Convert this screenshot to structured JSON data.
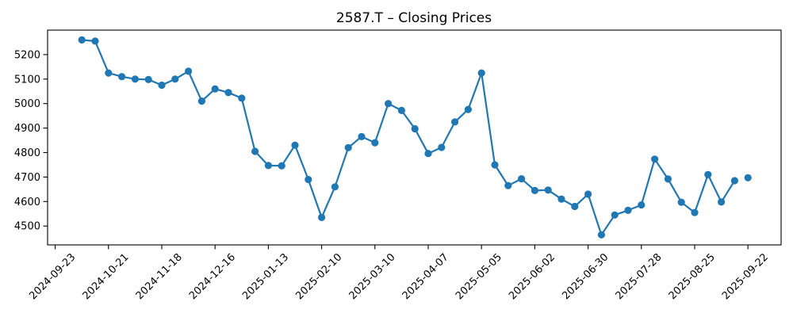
{
  "chart_data": {
    "type": "line",
    "title": "2587.T – Closing Prices",
    "series_name": "Closing Price",
    "line_color": "#1f77b4",
    "marker": "o",
    "grid": false,
    "legend": "none",
    "last_point_detached": true,
    "x": [
      "2024-10-07",
      "2024-10-14",
      "2024-10-21",
      "2024-10-28",
      "2024-11-04",
      "2024-11-11",
      "2024-11-18",
      "2024-11-25",
      "2024-12-02",
      "2024-12-09",
      "2024-12-16",
      "2024-12-23",
      "2024-12-30",
      "2025-01-06",
      "2025-01-13",
      "2025-01-20",
      "2025-01-27",
      "2025-02-03",
      "2025-02-10",
      "2025-02-17",
      "2025-02-24",
      "2025-03-03",
      "2025-03-10",
      "2025-03-17",
      "2025-03-24",
      "2025-03-31",
      "2025-04-07",
      "2025-04-14",
      "2025-04-21",
      "2025-04-28",
      "2025-05-05",
      "2025-05-12",
      "2025-05-19",
      "2025-05-26",
      "2025-06-02",
      "2025-06-09",
      "2025-06-16",
      "2025-06-23",
      "2025-06-30",
      "2025-07-07",
      "2025-07-14",
      "2025-07-21",
      "2025-07-28",
      "2025-08-04",
      "2025-08-11",
      "2025-08-18",
      "2025-08-25",
      "2025-09-01",
      "2025-09-08",
      "2025-09-15",
      "2025-09-22"
    ],
    "values": [
      5260,
      5255,
      5125,
      5110,
      5100,
      5098,
      5075,
      5100,
      5132,
      5010,
      5060,
      5045,
      5022,
      4805,
      4747,
      4746,
      4830,
      4690,
      4535,
      4660,
      4820,
      4865,
      4840,
      5000,
      4972,
      4897,
      4796,
      4821,
      4925,
      4976,
      5125,
      4750,
      4665,
      4693,
      4645,
      4647,
      4610,
      4580,
      4630,
      4464,
      4545,
      4564,
      4586,
      4773,
      4692,
      4597,
      4555,
      4710,
      4598,
      4685,
      4697
    ],
    "x_tick_labels": [
      "2024-09-23",
      "2024-10-21",
      "2024-11-18",
      "2024-12-16",
      "2025-01-13",
      "2025-02-10",
      "2025-03-10",
      "2025-04-07",
      "2025-05-05",
      "2025-06-02",
      "2025-06-30",
      "2025-07-28",
      "2025-08-25",
      "2025-09-22"
    ],
    "y_ticks": [
      4500,
      4600,
      4700,
      4800,
      4900,
      5000,
      5100,
      5200
    ],
    "ylim": [
      4423,
      5300
    ],
    "xlabel": "",
    "ylabel": ""
  }
}
